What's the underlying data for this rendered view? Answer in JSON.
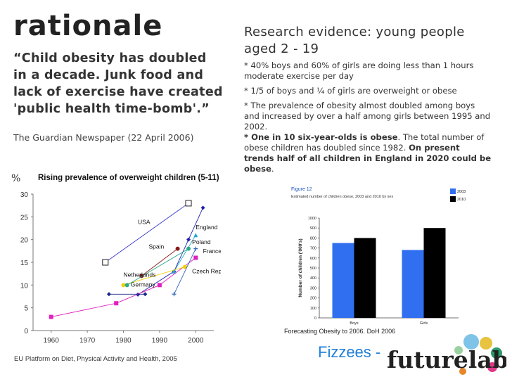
{
  "slide": {
    "title": "rationale",
    "quote": "“Child obesity has doubled in a decade. Junk food and lack of exercise have created 'public health time-bomb'.”",
    "quote_source": "The Guardian Newspaper (22 April 2006)",
    "research_heading": "Research evidence: young people aged 2 - 19",
    "bullets": [
      "* 40% boys and 60% of girls are doing less than 1 hours moderate exercise per day",
      "* 1/5 of boys and ¼ of girls are overweight or obese",
      "* The prevalence of obesity almost doubled among boys and increased by over a half among girls between 1995 and 2002."
    ],
    "bullet4_bold1": "* One in 10 six-year-olds is obese",
    "bullet4_text": ". The total number of obese children has doubled since 1982. ",
    "bullet4_bold2": "On present trends half of all children in England in 2020 could be obese",
    "bullet4_end": ".",
    "left_source": "EU Platform on Diet, Physical Activity and Health, 2005",
    "right_source": "Forecasting Obesity to 2006. DoH 2006",
    "brand_text": "Fizzees -",
    "logo_text": "futurelab"
  },
  "chart_data": [
    {
      "type": "line",
      "title": "Rising prevalence of overweight children (5-11)",
      "ylabel": "%",
      "xlim": [
        1955,
        2005
      ],
      "ylim": [
        0,
        30
      ],
      "xticks": [
        1960,
        1970,
        1980,
        1990,
        2000
      ],
      "yticks": [
        0,
        5,
        10,
        15,
        20,
        25,
        30
      ],
      "series": [
        {
          "name": "USA",
          "color": "#3a3ad0",
          "marker": "square-open",
          "points": [
            [
              1975,
              15
            ],
            [
              1998,
              28
            ]
          ]
        },
        {
          "name": "England",
          "color": "#2222aa",
          "marker": "diamond",
          "points": [
            [
              1984,
              7.9
            ],
            [
              1994,
              13
            ],
            [
              1998,
              20
            ],
            [
              2002,
              27
            ]
          ]
        },
        {
          "name": "Spain",
          "color": "#8b1a1a",
          "marker": "circle",
          "points": [
            [
              1985,
              12
            ],
            [
              1995,
              18
            ]
          ]
        },
        {
          "name": "Poland",
          "color": "#22aacc",
          "marker": "triangle",
          "points": [
            [
              1994,
              13
            ],
            [
              2000,
              21
            ]
          ]
        },
        {
          "name": "France",
          "color": "#e020c0",
          "marker": "square",
          "points": [
            [
              1960,
              3
            ],
            [
              1978,
              6
            ],
            [
              1990,
              10
            ],
            [
              2000,
              16
            ]
          ]
        },
        {
          "name": "Netherlands",
          "color": "#f0d000",
          "marker": "circle",
          "points": [
            [
              1980,
              10
            ],
            [
              1997,
              14
            ]
          ]
        },
        {
          "name": "Germany",
          "color": "#2aaa88",
          "marker": "circle",
          "points": [
            [
              1981,
              10
            ],
            [
              1998,
              18
            ]
          ]
        },
        {
          "name": "Czech Rep",
          "color": "#3366bb",
          "marker": "plus",
          "points": [
            [
              1994,
              8
            ],
            [
              2000,
              18
            ]
          ]
        },
        {
          "name": "",
          "color": "#1a2a88",
          "marker": "diamond",
          "points": [
            [
              1976,
              8
            ],
            [
              1986,
              8
            ]
          ]
        }
      ]
    },
    {
      "type": "bar",
      "title": "Figure 12",
      "subtitle": "Estimated number of children obese, 2003 and 2010 by sex",
      "ylabel": "Number of children ('000's)",
      "categories": [
        "Boys",
        "Girls"
      ],
      "ylim": [
        0,
        1000
      ],
      "yticks": [
        0,
        100,
        200,
        300,
        400,
        500,
        600,
        700,
        800,
        900,
        1000
      ],
      "series": [
        {
          "name": "2003",
          "color": "#2f6ff0",
          "values": [
            750,
            680
          ]
        },
        {
          "name": "2010",
          "color": "#000000",
          "values": [
            800,
            900
          ]
        }
      ]
    }
  ]
}
